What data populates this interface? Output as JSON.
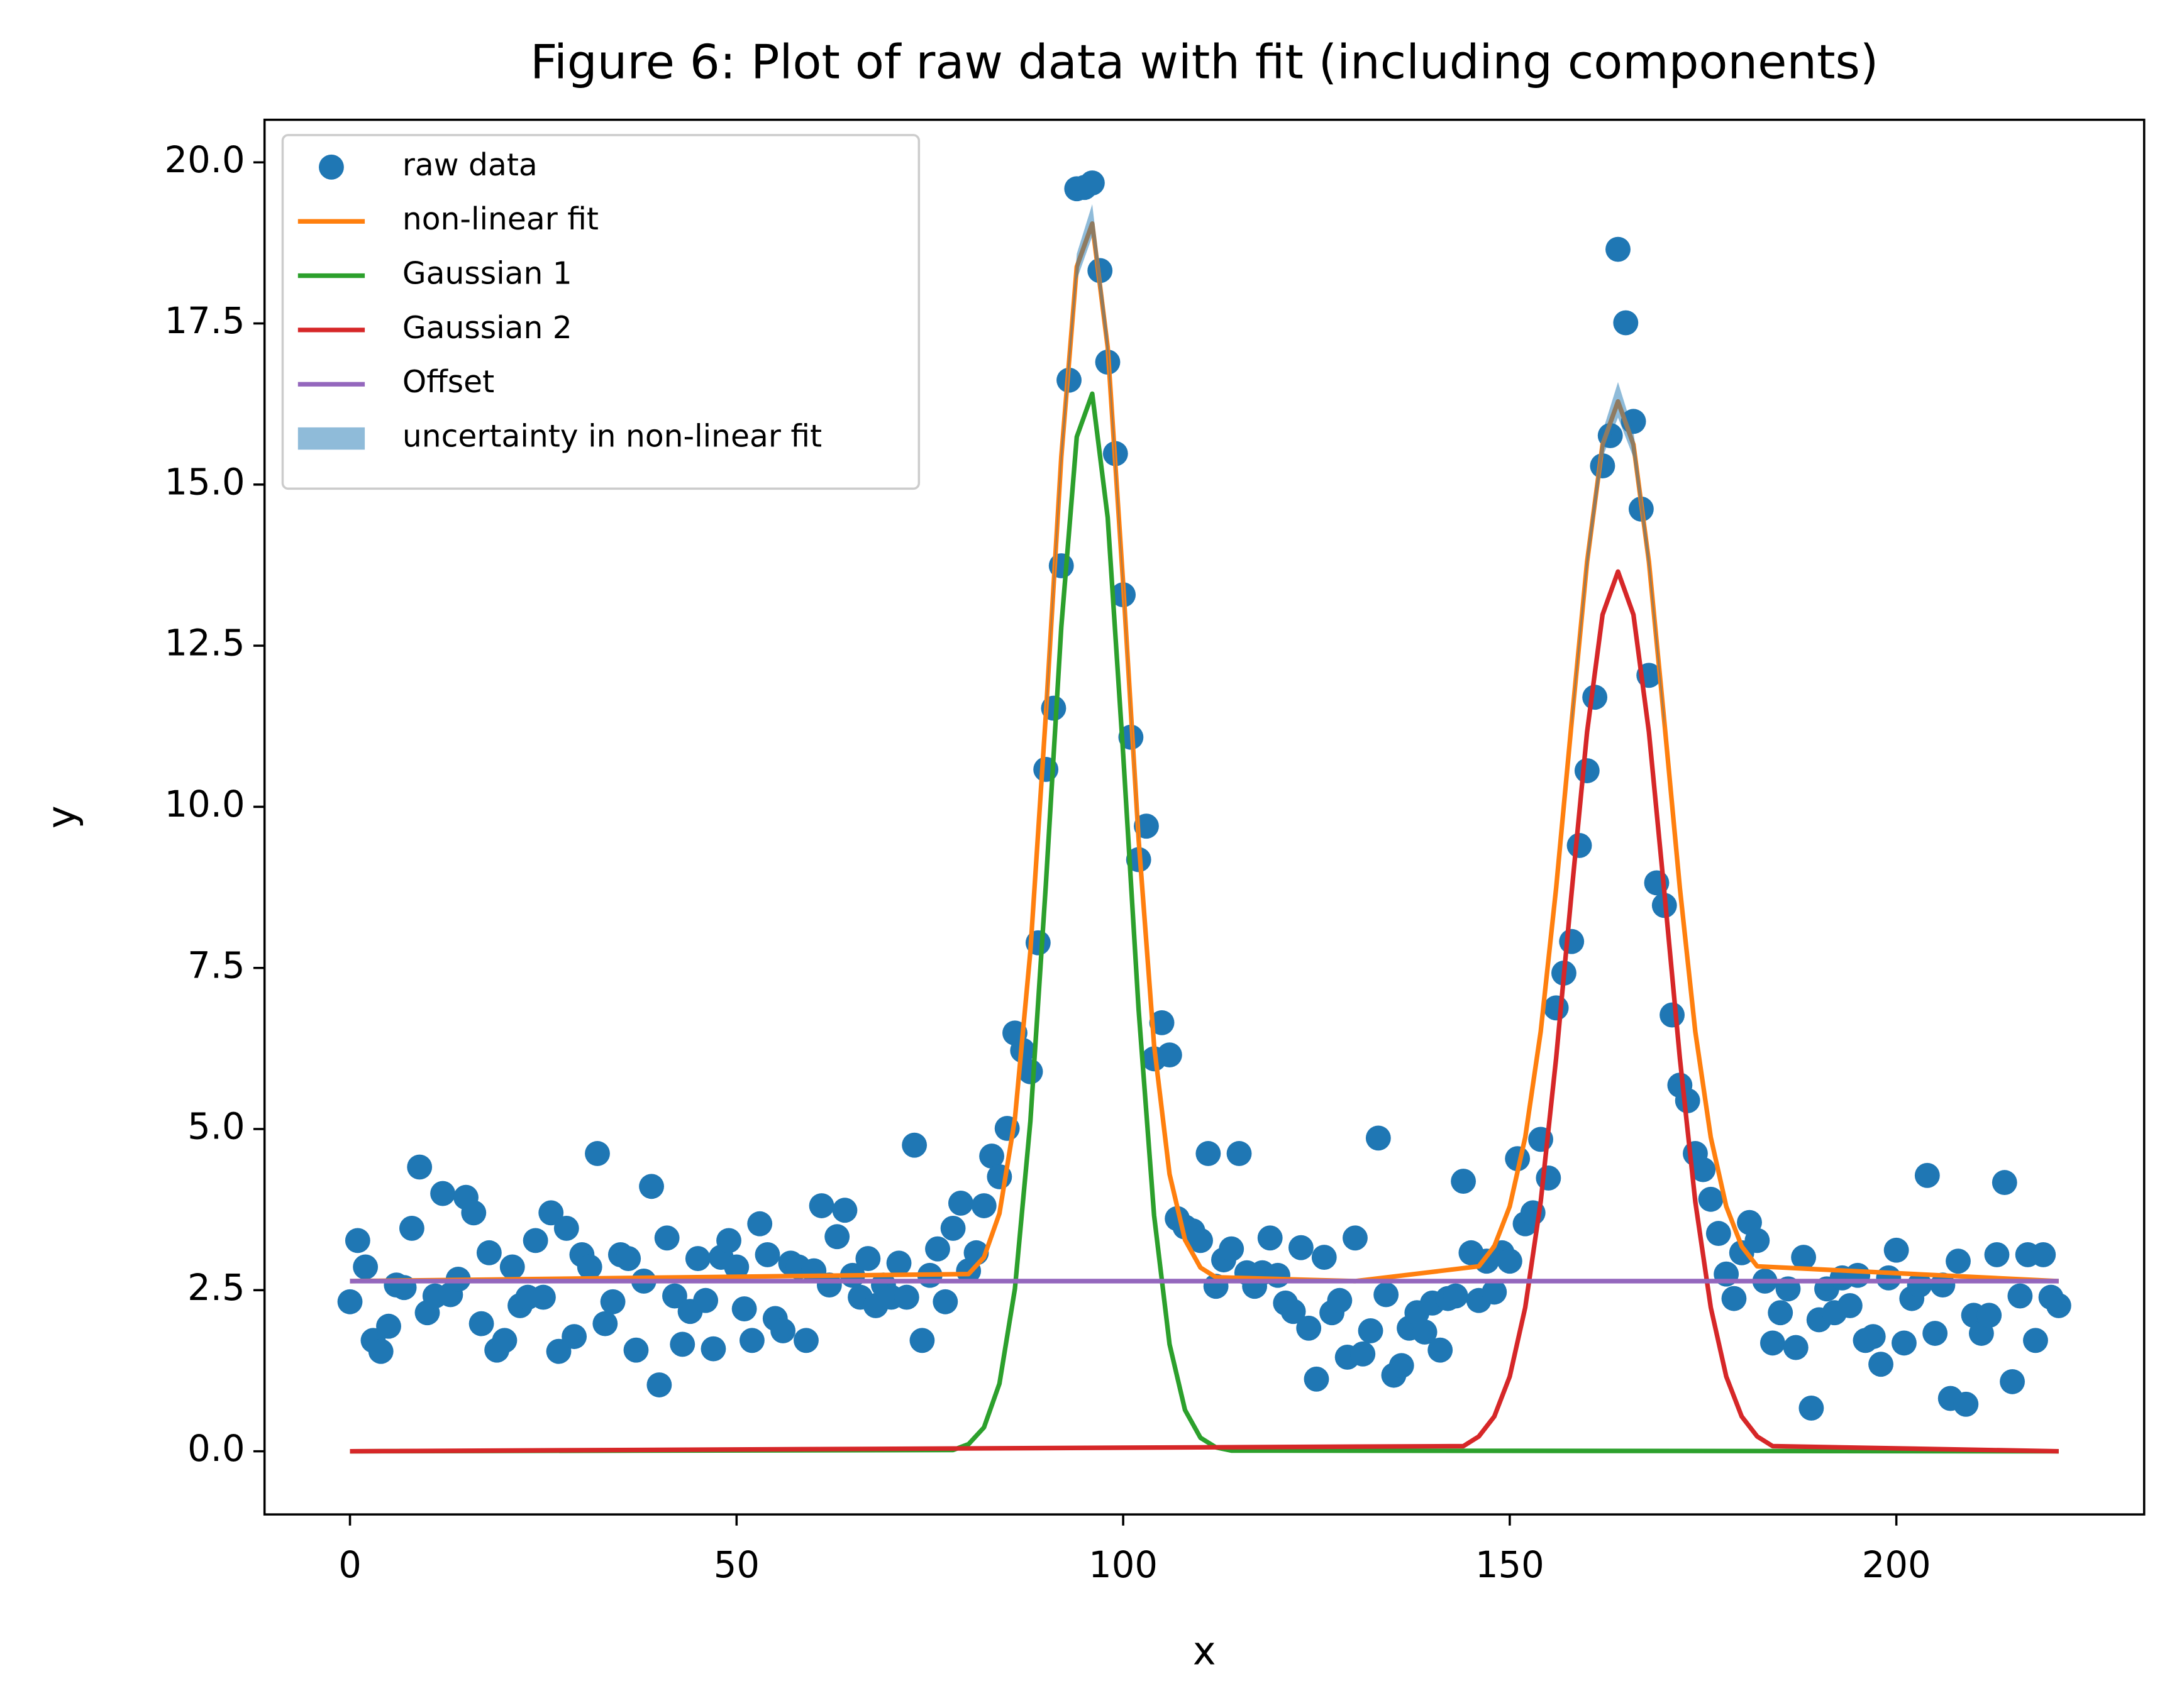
{
  "chart_data": {
    "type": "scatter",
    "title": "Figure 6: Plot of raw data with fit (including components)",
    "x_label": "x",
    "y_label": "y",
    "xlim": [
      -11.05,
      232.05
    ],
    "ylim": [
      -0.98,
      20.66
    ],
    "xticks": [
      0,
      50,
      100,
      150,
      200
    ],
    "yticks": [
      {
        "value": 0,
        "label": "0.0"
      },
      {
        "value": 2.5,
        "label": "2.5"
      },
      {
        "value": 5,
        "label": "5.0"
      },
      {
        "value": 7.5,
        "label": "7.5"
      },
      {
        "value": 10,
        "label": "10.0"
      },
      {
        "value": 12.5,
        "label": "12.5"
      },
      {
        "value": 15,
        "label": "15.0"
      },
      {
        "value": 17.5,
        "label": "17.5"
      },
      {
        "value": 20,
        "label": "20.0"
      }
    ],
    "legend": "upper left",
    "series": [
      {
        "name": "raw data",
        "kind": "markers",
        "color": "#1f77b4",
        "x": [
          0,
          1,
          2,
          3,
          4,
          5,
          6,
          7,
          8,
          9,
          10,
          11,
          12,
          13,
          14,
          15,
          16,
          17,
          18,
          19,
          20,
          21,
          22,
          23,
          24,
          25,
          26,
          27,
          28,
          29,
          30,
          31,
          32,
          33,
          34,
          35,
          36,
          37,
          38,
          39,
          40,
          41,
          42,
          43,
          44,
          45,
          46,
          47,
          48,
          49,
          50,
          51,
          52,
          53,
          54,
          55,
          56,
          57,
          58,
          59,
          60,
          61,
          62,
          63,
          64,
          65,
          66,
          67,
          68,
          69,
          70,
          71,
          72,
          73,
          74,
          75,
          76,
          77,
          78,
          79,
          80,
          81,
          82,
          83,
          84,
          85,
          86,
          87,
          88,
          89,
          90,
          91,
          92,
          93,
          94,
          95,
          96,
          97,
          98,
          99,
          100,
          101,
          102,
          103,
          104,
          105,
          106,
          107,
          108,
          109,
          110,
          111,
          112,
          113,
          114,
          115,
          116,
          117,
          118,
          119,
          120,
          121,
          122,
          123,
          124,
          125,
          126,
          127,
          128,
          129,
          130,
          131,
          132,
          133,
          134,
          135,
          136,
          137,
          138,
          139,
          140,
          141,
          142,
          143,
          144,
          145,
          146,
          147,
          148,
          149,
          150,
          151,
          152,
          153,
          154,
          155,
          156,
          157,
          158,
          159,
          160,
          161,
          162,
          163,
          164,
          165,
          166,
          167,
          168,
          169,
          170,
          171,
          172,
          173,
          174,
          175,
          176,
          177,
          178,
          179,
          180,
          181,
          182,
          183,
          184,
          185,
          186,
          187,
          188,
          189,
          190,
          191,
          192,
          193,
          194,
          195,
          196,
          197,
          198,
          199,
          200,
          201,
          202,
          203,
          204,
          205,
          206,
          207,
          208,
          209,
          210,
          211,
          212,
          213,
          214,
          215,
          216,
          217,
          218,
          219,
          220,
          221
        ],
        "values": [
          2.32,
          3.27,
          2.86,
          1.72,
          1.55,
          1.94,
          2.58,
          2.54,
          3.46,
          4.41,
          2.15,
          2.41,
          4.0,
          2.43,
          2.67,
          3.94,
          3.7,
          1.98,
          3.08,
          1.57,
          1.72,
          2.86,
          2.26,
          2.39,
          3.27,
          2.39,
          3.7,
          1.55,
          3.46,
          1.78,
          3.05,
          2.86,
          4.62,
          1.98,
          2.32,
          3.05,
          2.99,
          1.57,
          2.64,
          4.11,
          1.03,
          3.31,
          2.41,
          1.66,
          2.17,
          2.99,
          2.34,
          1.59,
          3.01,
          3.27,
          2.86,
          2.21,
          1.72,
          3.53,
          3.05,
          2.06,
          1.87,
          2.92,
          2.86,
          1.72,
          2.8,
          3.81,
          2.58,
          3.33,
          3.74,
          2.73,
          2.39,
          2.99,
          2.26,
          2.58,
          2.39,
          2.92,
          2.39,
          4.75,
          1.72,
          2.73,
          3.14,
          2.32,
          3.46,
          3.85,
          2.8,
          3.08,
          3.81,
          4.58,
          4.26,
          5.01,
          6.49,
          6.22,
          5.89,
          7.89,
          10.58,
          11.53,
          13.74,
          16.62,
          19.59,
          19.61,
          19.68,
          18.32,
          16.9,
          15.48,
          13.29,
          11.08,
          9.18,
          9.7,
          6.09,
          6.65,
          6.15,
          3.61,
          3.48,
          3.42,
          3.27,
          4.62,
          2.56,
          2.97,
          3.14,
          4.62,
          2.77,
          2.56,
          2.77,
          3.31,
          2.73,
          2.3,
          2.17,
          3.16,
          1.91,
          1.12,
          3.01,
          2.15,
          2.34,
          1.46,
          3.31,
          1.51,
          1.87,
          4.86,
          2.43,
          1.18,
          1.33,
          1.91,
          2.15,
          1.85,
          2.3,
          1.57,
          2.37,
          2.41,
          4.19,
          3.08,
          2.34,
          2.95,
          2.47,
          3.08,
          2.95,
          4.54,
          3.53,
          3.7,
          4.84,
          4.24,
          6.88,
          7.42,
          7.91,
          9.4,
          10.56,
          11.7,
          15.29,
          15.76,
          18.65,
          17.51,
          15.98,
          14.62,
          12.04,
          8.82,
          8.47,
          6.77,
          5.68,
          5.44,
          4.62,
          4.37,
          3.91,
          3.38,
          2.75,
          2.37,
          3.08,
          3.55,
          3.27,
          2.64,
          1.68,
          2.15,
          2.52,
          1.61,
          3.01,
          0.67,
          2.04,
          2.52,
          2.15,
          2.69,
          2.26,
          2.73,
          1.72,
          1.78,
          1.35,
          2.69,
          3.12,
          1.68,
          2.37,
          2.58,
          4.28,
          1.83,
          2.58,
          0.82,
          2.95,
          0.73,
          2.11,
          1.83,
          2.11,
          3.05,
          4.17,
          1.08,
          2.41,
          3.05,
          1.72,
          3.05,
          2.39,
          2.26
        ]
      },
      {
        "name": "non-linear fit",
        "kind": "line",
        "color": "#ff7f0e",
        "x": [
          0,
          80,
          82,
          84,
          86,
          88,
          90,
          92,
          94,
          96,
          98,
          100,
          102,
          104,
          106,
          108,
          110,
          112,
          130,
          146,
          148,
          150,
          152,
          154,
          156,
          158,
          160,
          162,
          164,
          166,
          168,
          170,
          172,
          174,
          176,
          178,
          180,
          182,
          221
        ],
        "values": [
          2.64,
          2.75,
          3.01,
          3.69,
          5.16,
          7.76,
          11.43,
          15.43,
          18.38,
          19.05,
          17.13,
          13.46,
          9.49,
          6.3,
          4.3,
          3.28,
          2.85,
          2.7,
          2.64,
          2.87,
          3.18,
          3.8,
          4.87,
          6.51,
          8.74,
          11.31,
          13.8,
          15.62,
          16.29,
          15.62,
          13.8,
          11.31,
          8.74,
          6.51,
          4.87,
          3.8,
          3.18,
          2.87,
          2.64
        ]
      },
      {
        "name": "Gaussian 1",
        "kind": "line",
        "color": "#2ca02c",
        "x": [
          0,
          78,
          80,
          82,
          84,
          86,
          88,
          90,
          92,
          94,
          96,
          98,
          100,
          102,
          104,
          106,
          108,
          110,
          112,
          114,
          221
        ],
        "values": [
          0,
          0.02,
          0.11,
          0.37,
          1.05,
          2.52,
          5.12,
          8.79,
          12.79,
          15.74,
          16.41,
          14.49,
          10.82,
          6.85,
          3.66,
          1.66,
          0.64,
          0.21,
          0.06,
          0.01,
          0
        ]
      },
      {
        "name": "Gaussian 2",
        "kind": "line",
        "color": "#d62728",
        "x": [
          0,
          144,
          146,
          148,
          150,
          152,
          154,
          156,
          158,
          160,
          162,
          164,
          166,
          168,
          170,
          172,
          174,
          176,
          178,
          180,
          182,
          184,
          221
        ],
        "values": [
          0,
          0.08,
          0.23,
          0.54,
          1.16,
          2.23,
          3.87,
          6.1,
          8.67,
          11.16,
          12.98,
          13.65,
          12.98,
          11.16,
          8.67,
          6.1,
          3.87,
          2.23,
          1.16,
          0.54,
          0.23,
          0.08,
          0
        ]
      },
      {
        "name": "Offset",
        "kind": "line",
        "color": "#9467bd",
        "x": [
          0,
          221
        ],
        "values": [
          2.64,
          2.64
        ]
      },
      {
        "name": "uncertainty in non-linear fit",
        "kind": "band",
        "color": "#1f77b4",
        "alpha": 0.5,
        "x": [
          90,
          92,
          94,
          96,
          98,
          100,
          102,
          130,
          158,
          160,
          162,
          164,
          166,
          168,
          170
        ],
        "lower": [
          11.33,
          15.28,
          18.18,
          18.85,
          16.98,
          13.36,
          9.44,
          null,
          11.21,
          13.65,
          15.42,
          16.04,
          15.42,
          13.65,
          11.21
        ],
        "upper": [
          11.53,
          15.58,
          18.58,
          19.35,
          17.33,
          13.56,
          9.54,
          null,
          11.41,
          13.95,
          15.82,
          16.59,
          15.82,
          13.95,
          11.41
        ]
      }
    ]
  }
}
